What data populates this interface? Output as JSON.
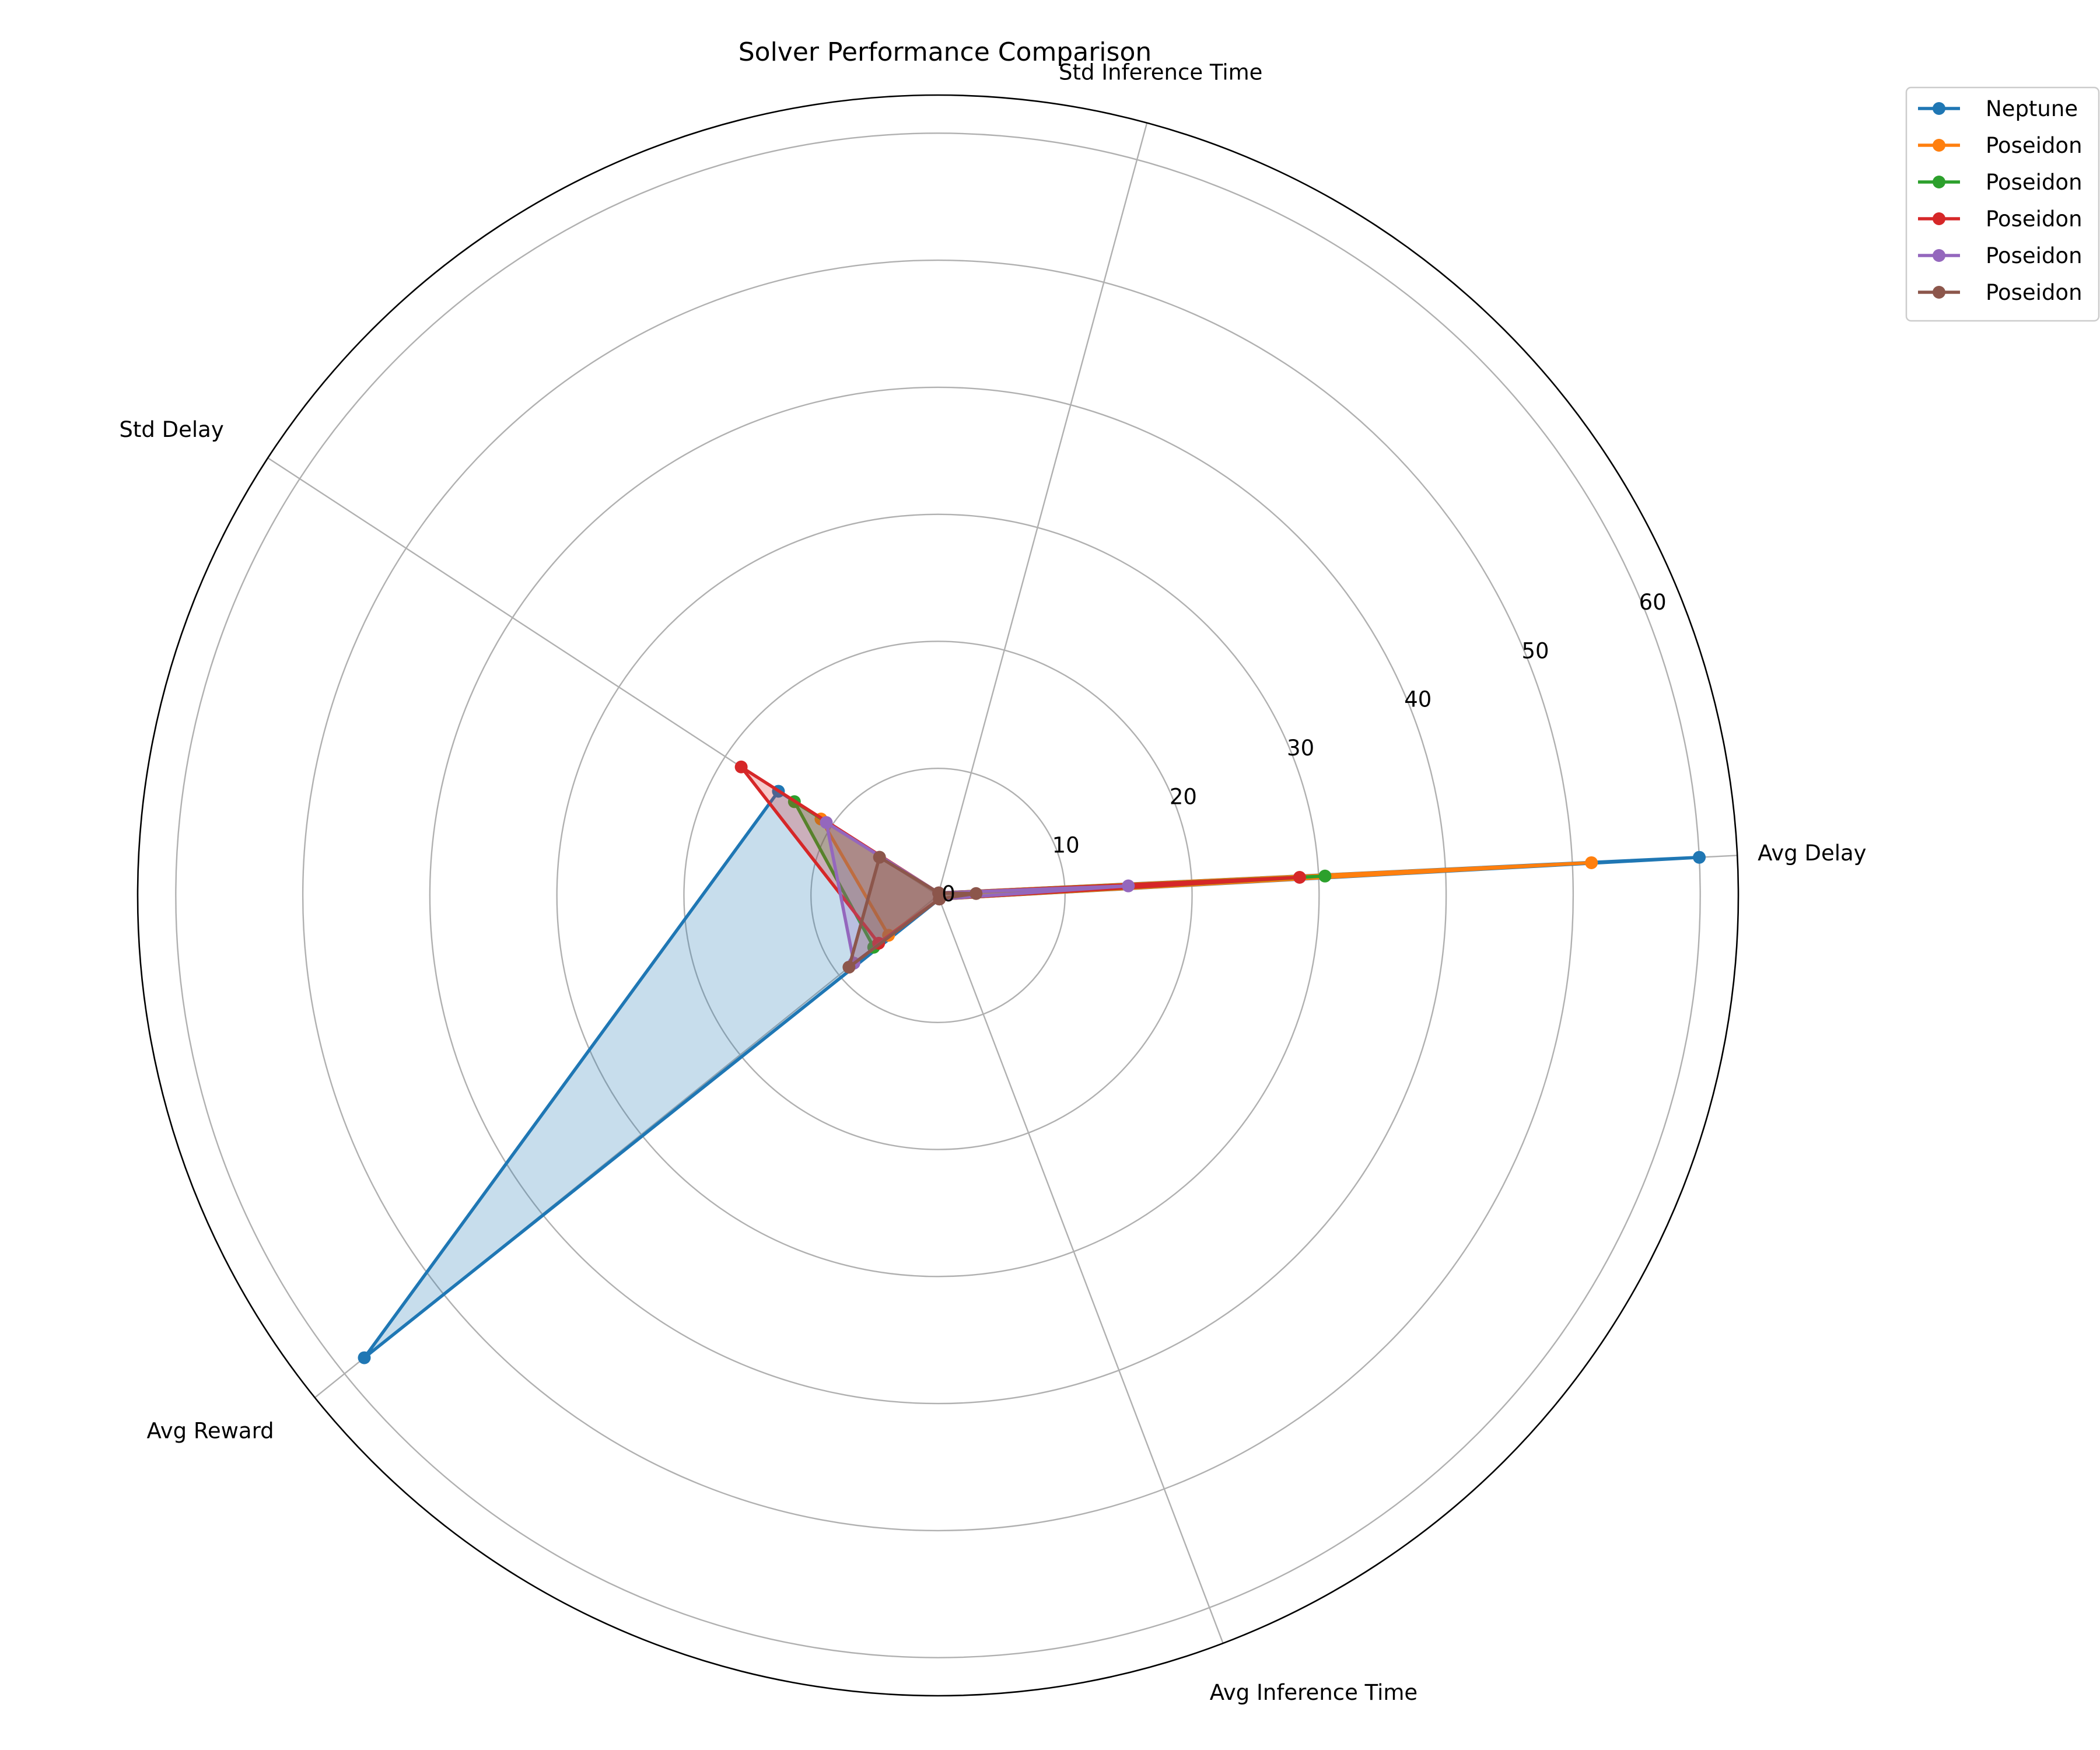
{
  "chart_data": {
    "type": "radar",
    "title": "Solver Performance Comparison",
    "axes": [
      "Avg Delay",
      "Avg Inference Time",
      "Avg Reward",
      "Std Delay",
      "Std Inference Time"
    ],
    "rlim": [
      0,
      63
    ],
    "rticks": [
      0,
      10,
      20,
      30,
      40,
      50,
      60
    ],
    "grid": true,
    "legend_position": "upper-right-outside",
    "series": [
      {
        "name": "Neptune",
        "color": "#1f77b4",
        "values": [
          60.0,
          0.3,
          58.0,
          15.0,
          0.2
        ],
        "filled": true
      },
      {
        "name": "Poseidon",
        "color": "#ff7f0e",
        "values": [
          51.5,
          0.3,
          5.0,
          11.0,
          0.2
        ],
        "filled": true
      },
      {
        "name": "Poseidon",
        "color": "#2ca02c",
        "values": [
          30.5,
          0.3,
          6.5,
          13.5,
          0.2
        ],
        "filled": true
      },
      {
        "name": "Poseidon",
        "color": "#d62728",
        "values": [
          28.5,
          0.3,
          6.0,
          18.5,
          0.2
        ],
        "filled": true
      },
      {
        "name": "Poseidon",
        "color": "#9467bd",
        "values": [
          15.0,
          0.3,
          8.5,
          10.5,
          0.2
        ],
        "filled": true
      },
      {
        "name": "Poseidon",
        "color": "#8c564b",
        "values": [
          3.0,
          0.3,
          9.0,
          5.5,
          0.2
        ],
        "filled": true
      }
    ]
  }
}
